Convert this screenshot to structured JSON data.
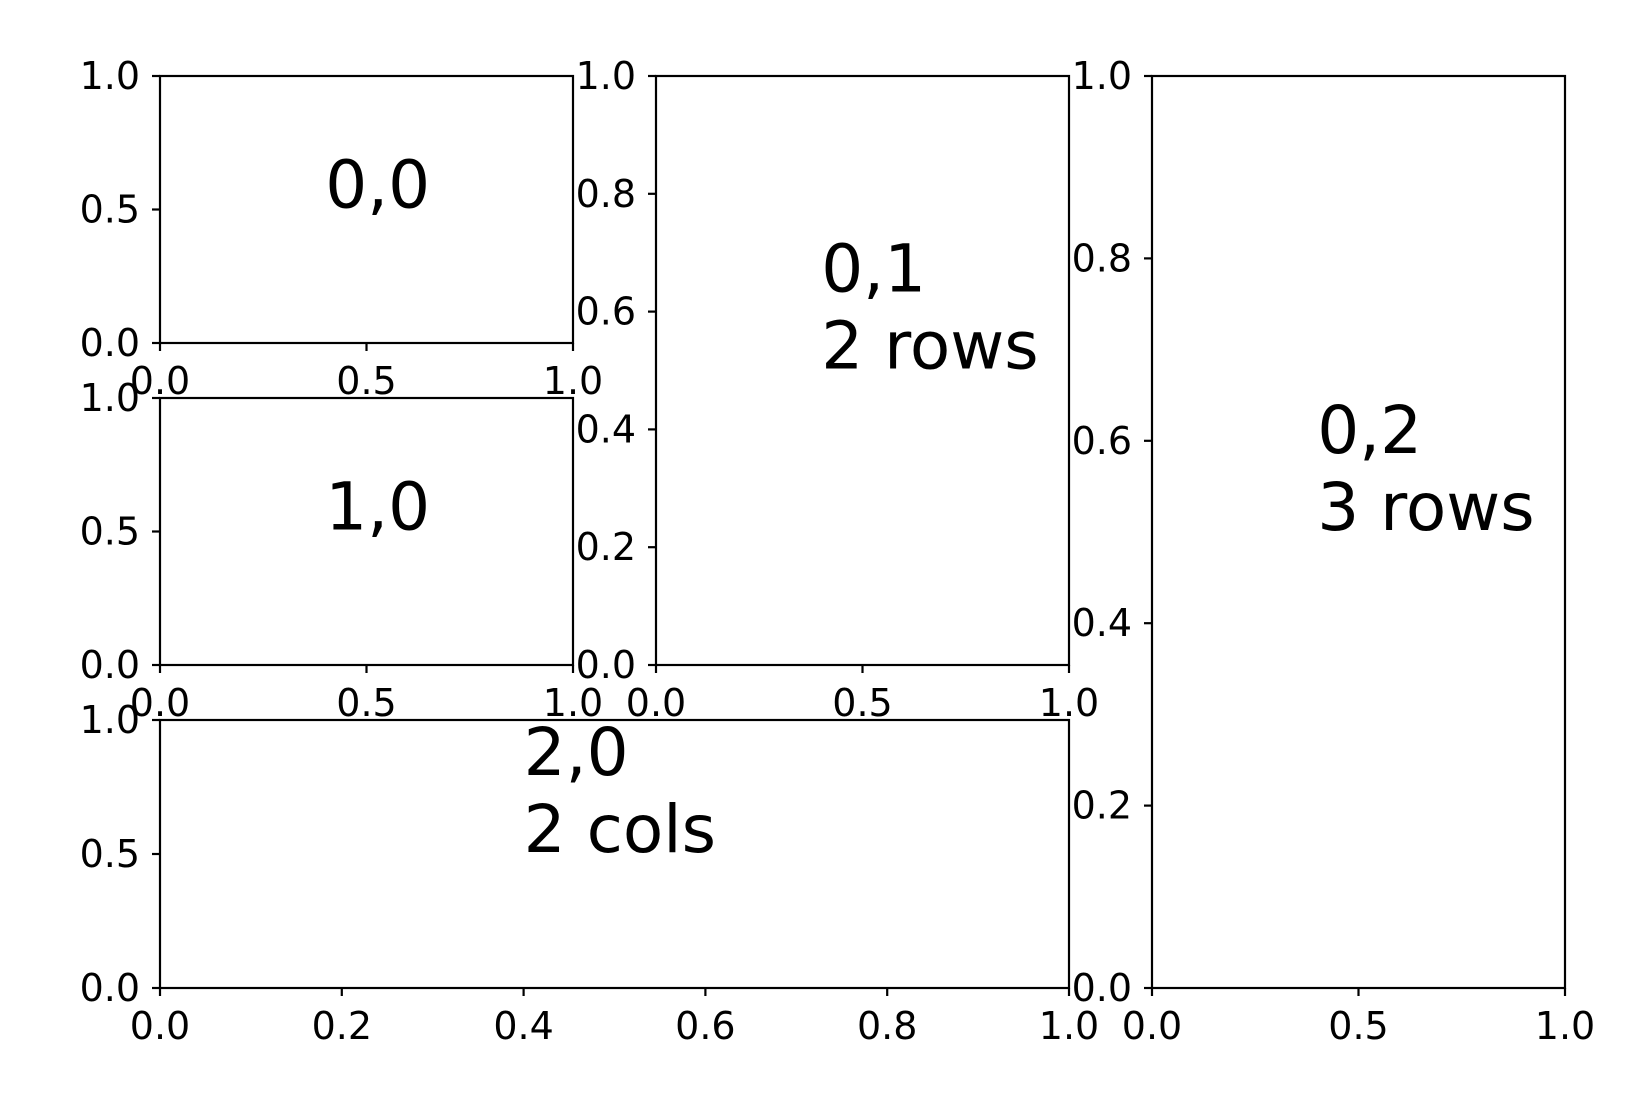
{
  "chart_data": [
    {
      "type": "line",
      "panel": "0,0",
      "text_lines": [
        "0,0"
      ],
      "text_pos": [
        0.4,
        0.5
      ],
      "xlim": [
        0,
        1
      ],
      "ylim": [
        0,
        1
      ],
      "xticks": [
        0.0,
        0.5,
        1.0
      ],
      "xtick_labels": [
        "0.0",
        "0.5",
        "1.0"
      ],
      "yticks": [
        0.0,
        0.5,
        1.0
      ],
      "ytick_labels": [
        "0.0",
        "0.5",
        "1.0"
      ],
      "series": []
    },
    {
      "type": "line",
      "panel": "1,0",
      "text_lines": [
        "1,0"
      ],
      "text_pos": [
        0.4,
        0.5
      ],
      "xlim": [
        0,
        1
      ],
      "ylim": [
        0,
        1
      ],
      "xticks": [
        0.0,
        0.5,
        1.0
      ],
      "xtick_labels": [
        "0.0",
        "0.5",
        "1.0"
      ],
      "yticks": [
        0.0,
        0.5,
        1.0
      ],
      "ytick_labels": [
        "0.0",
        "0.5",
        "1.0"
      ],
      "series": []
    },
    {
      "type": "line",
      "panel": "0,1",
      "text_lines": [
        "0,1",
        "2 rows"
      ],
      "text_pos": [
        0.4,
        0.5
      ],
      "xlim": [
        0,
        1
      ],
      "ylim": [
        0,
        1
      ],
      "xticks": [
        0.0,
        0.5,
        1.0
      ],
      "xtick_labels": [
        "0.0",
        "0.5",
        "1.0"
      ],
      "yticks": [
        0.0,
        0.2,
        0.4,
        0.6,
        0.8,
        1.0
      ],
      "ytick_labels": [
        "0.0",
        "0.2",
        "0.4",
        "0.6",
        "0.8",
        "1.0"
      ],
      "series": []
    },
    {
      "type": "line",
      "panel": "0,2",
      "text_lines": [
        "0,2",
        "3 rows"
      ],
      "text_pos": [
        0.4,
        0.5
      ],
      "xlim": [
        0,
        1
      ],
      "ylim": [
        0,
        1
      ],
      "xticks": [
        0.0,
        0.5,
        1.0
      ],
      "xtick_labels": [
        "0.0",
        "0.5",
        "1.0"
      ],
      "yticks": [
        0.0,
        0.2,
        0.4,
        0.6,
        0.8,
        1.0
      ],
      "ytick_labels": [
        "0.0",
        "0.2",
        "0.4",
        "0.6",
        "0.8",
        "1.0"
      ],
      "series": []
    },
    {
      "type": "line",
      "panel": "2,0",
      "text_lines": [
        "2,0",
        "2 cols"
      ],
      "text_pos": [
        0.4,
        0.5
      ],
      "xlim": [
        0,
        1
      ],
      "ylim": [
        0,
        1
      ],
      "xticks": [
        0.0,
        0.2,
        0.4,
        0.6,
        0.8,
        1.0
      ],
      "xtick_labels": [
        "0.0",
        "0.2",
        "0.4",
        "0.6",
        "0.8",
        "1.0"
      ],
      "yticks": [
        0.0,
        0.5,
        1.0
      ],
      "ytick_labels": [
        "0.0",
        "0.5",
        "1.0"
      ],
      "series": []
    }
  ]
}
